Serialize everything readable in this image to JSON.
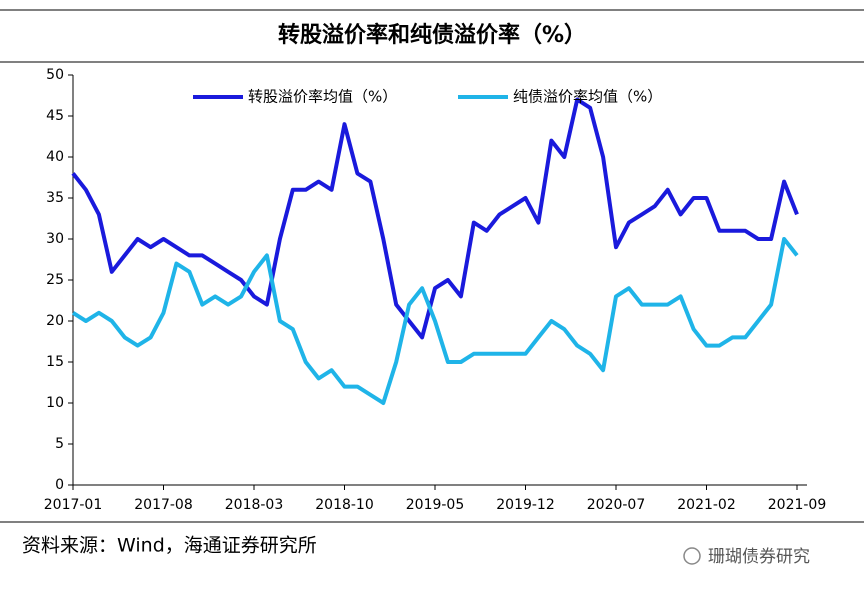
{
  "chart_data": {
    "type": "line",
    "title": "转股溢价率和纯债溢价率（%）",
    "source": "资料来源：Wind，海通证券研究所",
    "watermark": "珊瑚债券研究",
    "x": [
      "2017-01",
      "2017-02",
      "2017-03",
      "2017-04",
      "2017-05",
      "2017-06",
      "2017-07",
      "2017-08",
      "2017-09",
      "2017-10",
      "2017-11",
      "2017-12",
      "2018-01",
      "2018-02",
      "2018-03",
      "2018-04",
      "2018-05",
      "2018-06",
      "2018-07",
      "2018-08",
      "2018-09",
      "2018-10",
      "2018-11",
      "2018-12",
      "2019-01",
      "2019-02",
      "2019-03",
      "2019-04",
      "2019-05",
      "2019-06",
      "2019-07",
      "2019-08",
      "2019-09",
      "2019-10",
      "2019-11",
      "2019-12",
      "2020-01",
      "2020-02",
      "2020-03",
      "2020-04",
      "2020-05",
      "2020-06",
      "2020-07",
      "2020-08",
      "2020-09",
      "2020-10",
      "2020-11",
      "2020-12",
      "2021-01",
      "2021-02",
      "2021-03",
      "2021-04",
      "2021-05",
      "2021-06",
      "2021-07",
      "2021-08",
      "2021-09"
    ],
    "series": [
      {
        "name": "转股溢价率均值（%）",
        "color": "#1a1adc",
        "values": [
          38,
          36,
          33,
          26,
          28,
          30,
          29,
          30,
          29,
          28,
          28,
          27,
          26,
          25,
          23,
          22,
          30,
          36,
          36,
          37,
          36,
          44,
          38,
          37,
          30,
          22,
          20,
          18,
          24,
          25,
          23,
          32,
          31,
          33,
          34,
          35,
          32,
          42,
          40,
          47,
          46,
          40,
          29,
          32,
          33,
          34,
          36,
          33,
          35,
          35,
          31,
          31,
          31,
          30,
          30,
          37,
          33
        ]
      },
      {
        "name": "纯债溢价率均值（%）",
        "color": "#1fb4e8",
        "values": [
          21,
          20,
          21,
          20,
          18,
          17,
          18,
          21,
          27,
          26,
          22,
          23,
          22,
          23,
          26,
          28,
          20,
          19,
          15,
          13,
          14,
          12,
          12,
          11,
          10,
          15,
          22,
          24,
          20,
          15,
          15,
          16,
          16,
          16,
          16,
          16,
          18,
          20,
          19,
          17,
          16,
          14,
          23,
          24,
          22,
          22,
          22,
          23,
          19,
          17,
          17,
          18,
          18,
          20,
          22,
          30,
          28
        ]
      }
    ],
    "xticks": [
      "2017-01",
      "2017-08",
      "2018-03",
      "2018-10",
      "2019-05",
      "2019-12",
      "2020-07",
      "2021-02",
      "2021-09"
    ],
    "ylim": [
      0,
      50
    ],
    "yticks": [
      0,
      5,
      10,
      15,
      20,
      25,
      30,
      35,
      40,
      45,
      50
    ],
    "legend": "top"
  }
}
